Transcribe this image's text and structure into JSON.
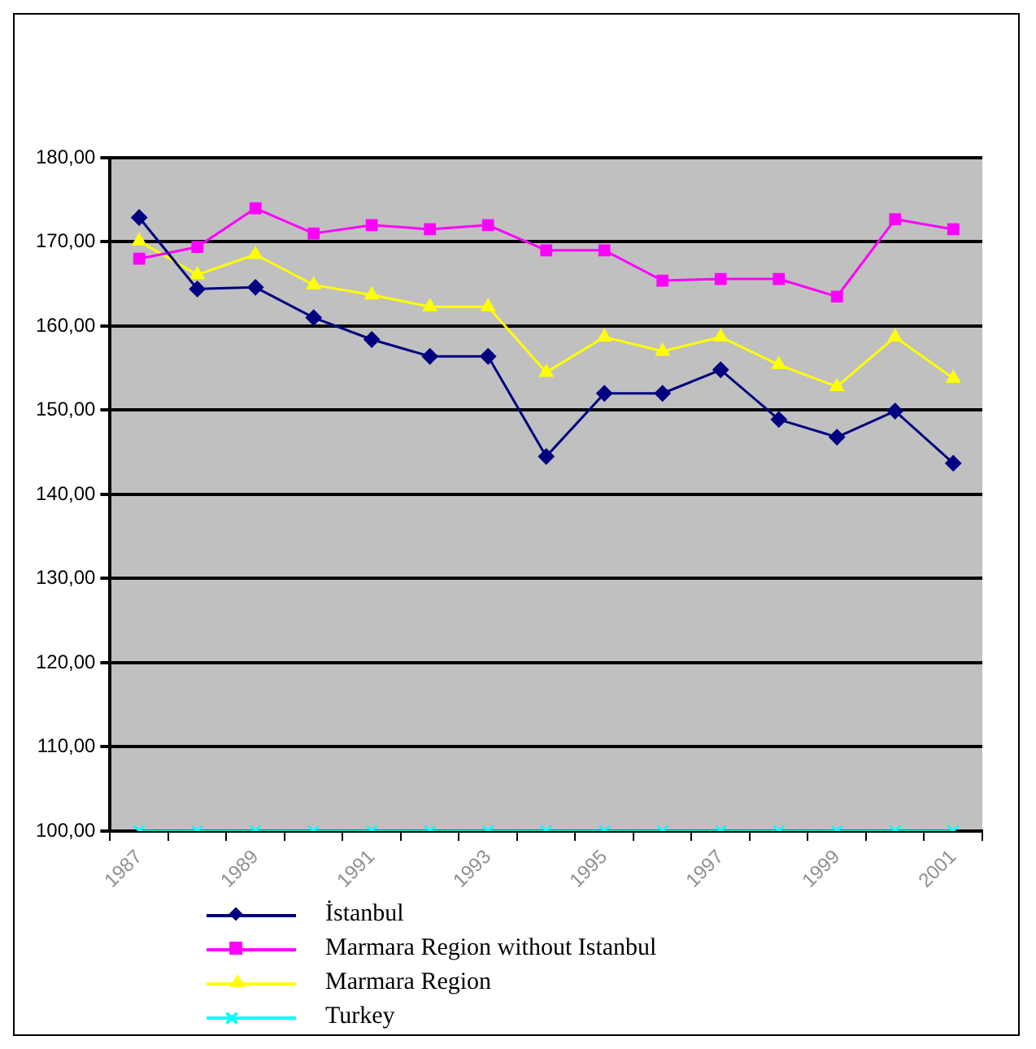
{
  "chart_data": {
    "type": "line",
    "categories": [
      "1987",
      null,
      "1989",
      null,
      "1991",
      null,
      "1993",
      null,
      "1995",
      null,
      "1997",
      null,
      "1999",
      null,
      "2001"
    ],
    "series": [
      {
        "name": "İstanbul",
        "color": "#000080",
        "marker": "diamond",
        "values": [
          172.9,
          164.4,
          164.6,
          161.0,
          158.4,
          156.4,
          156.4,
          144.5,
          152.0,
          152.0,
          154.8,
          148.9,
          146.8,
          149.9,
          143.7
        ]
      },
      {
        "name": "Marmara Region without Istanbul",
        "color": "#ff00ff",
        "marker": "square",
        "values": [
          168.0,
          169.4,
          174.0,
          171.0,
          172.0,
          171.5,
          172.0,
          169.0,
          169.0,
          165.4,
          165.6,
          165.6,
          163.5,
          172.7,
          171.5
        ]
      },
      {
        "name": "Marmara Region",
        "color": "#ffff00",
        "marker": "triangle",
        "values": [
          170.1,
          166.1,
          168.5,
          164.9,
          163.7,
          162.3,
          162.3,
          154.5,
          158.7,
          157.0,
          158.7,
          155.4,
          152.8,
          158.7,
          153.8
        ]
      },
      {
        "name": "Turkey",
        "color": "#00ffff",
        "marker": "cross",
        "values": [
          100,
          100,
          100,
          100,
          100,
          100,
          100,
          100,
          100,
          100,
          100,
          100,
          100,
          100,
          100
        ]
      }
    ],
    "ylim": [
      100,
      180
    ],
    "yticks": [
      {
        "value": 100,
        "label": "100,00"
      },
      {
        "value": 110,
        "label": "110,00"
      },
      {
        "value": 120,
        "label": "120,00"
      },
      {
        "value": 130,
        "label": "130,00"
      },
      {
        "value": 140,
        "label": "140,00"
      },
      {
        "value": 150,
        "label": "150,00"
      },
      {
        "value": 160,
        "label": "160,00"
      },
      {
        "value": 170,
        "label": "170,00"
      },
      {
        "value": 180,
        "label": "180,00"
      }
    ],
    "grid": "y",
    "legend": "bottom",
    "line_style": "solid"
  }
}
